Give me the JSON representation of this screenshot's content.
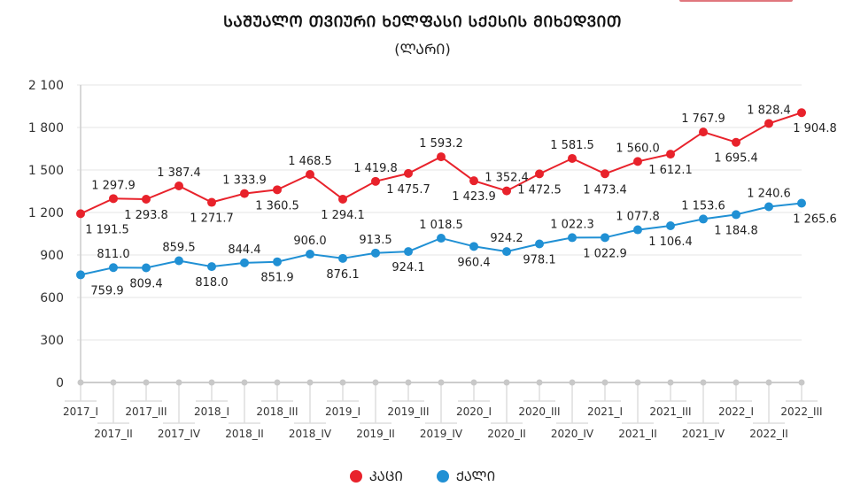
{
  "colors": {
    "men": "#e8222b",
    "women": "#2090d4",
    "grid": "#e6e6e6",
    "axis": "#cccccc",
    "accent_button": "#e0767d"
  },
  "chart_data": {
    "type": "line",
    "title": "ᲡᲐᲨᲣᲐᲚᲝ ᲗᲕᲘᲣᲠᲘ ᲮᲔᲚᲤᲐᲡᲘ ᲡᲥᲔᲡᲘᲡ ᲛᲘᲮᲔᲓᲕᲘᲗ",
    "subtitle": "(ᲚᲐᲠᲘ)",
    "xlabel": "",
    "ylabel": "",
    "ylim": [
      0,
      2100
    ],
    "yticks": [
      0,
      300,
      600,
      900,
      1200,
      1500,
      1800,
      2100
    ],
    "ytick_labels": [
      "0",
      "300",
      "600",
      "900",
      "1 200",
      "1 500",
      "1 800",
      "2 100"
    ],
    "grid": true,
    "legend_position": "bottom",
    "categories": [
      "2017_I",
      "2017_II",
      "2017_III",
      "2017_IV",
      "2018_I",
      "2018_II",
      "2018_III",
      "2018_IV",
      "2019_I",
      "2019_II",
      "2019_III",
      "2019_IV",
      "2020_I",
      "2020_II",
      "2020_III",
      "2020_IV",
      "2021_I",
      "2021_II",
      "2021_III",
      "2021_IV",
      "2022_I",
      "2022_II",
      "2022_III"
    ],
    "series": [
      {
        "name": "ᲙᲐᲪᲘ",
        "color_key": "men",
        "values": [
          1191.5,
          1297.9,
          1293.8,
          1387.4,
          1271.7,
          1333.9,
          1360.5,
          1468.5,
          1294.1,
          1419.8,
          1475.7,
          1593.2,
          1423.9,
          1352.4,
          1472.5,
          1581.5,
          1473.4,
          1560.0,
          1612.1,
          1767.9,
          1695.4,
          1828.4,
          1904.8
        ],
        "labels": [
          "1 191.5",
          "1 297.9",
          "1 293.8",
          "1 387.4",
          "1 271.7",
          "1 333.9",
          "1 360.5",
          "1 468.5",
          "1 294.1",
          "1 419.8",
          "1 475.7",
          "1 593.2",
          "1 423.9",
          "1 352.4",
          "1 472.5",
          "1 581.5",
          "1 473.4",
          "1 560.0",
          "1 612.1",
          "1 767.9",
          "1 695.4",
          "1 828.4",
          "1 904.8"
        ]
      },
      {
        "name": "ᲥᲐᲚᲘ",
        "color_key": "women",
        "values": [
          759.9,
          811.0,
          809.4,
          859.5,
          818.0,
          844.4,
          851.9,
          906.0,
          876.1,
          913.5,
          924.1,
          1018.5,
          960.4,
          924.2,
          978.1,
          1022.3,
          1022.9,
          1077.8,
          1106.4,
          1153.6,
          1184.8,
          1240.6,
          1265.6
        ],
        "labels": [
          "759.9",
          "811.0",
          "809.4",
          "859.5",
          "818.0",
          "844.4",
          "851.9",
          "906.0",
          "876.1",
          "913.5",
          "924.1",
          "1 018.5",
          "960.4",
          "924.2",
          "978.1",
          "1 022.3",
          "1 022.9",
          "1 077.8",
          "1 106.4",
          "1 153.6",
          "1 184.8",
          "1 240.6",
          "1 265.6"
        ]
      }
    ]
  }
}
